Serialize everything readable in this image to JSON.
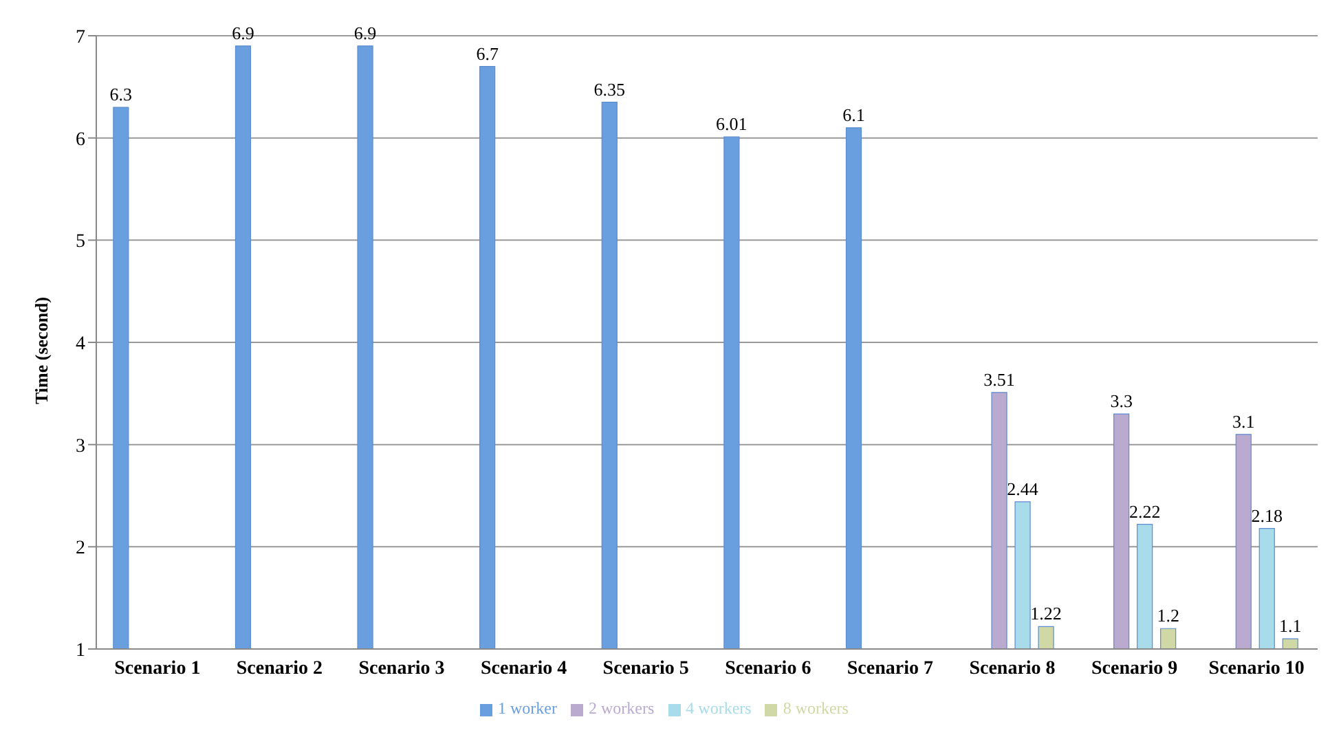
{
  "chart_data": {
    "type": "bar",
    "ylabel": "Time (second)",
    "categories": [
      "Scenario 1",
      "Scenario 2",
      "Scenario 3",
      "Scenario 4",
      "Scenario 5",
      "Scenario 6",
      "Scenario 7",
      "Scenario 8",
      "Scenario 9",
      "Scenario 10"
    ],
    "series": [
      {
        "name": "1 worker",
        "color": "#6a9fdf",
        "values": [
          6.3,
          6.9,
          6.9,
          6.7,
          6.35,
          6.01,
          6.1,
          null,
          null,
          null
        ]
      },
      {
        "name": "2 workers",
        "color": "#baaad0",
        "values": [
          null,
          null,
          null,
          null,
          null,
          null,
          null,
          3.51,
          3.3,
          3.1
        ]
      },
      {
        "name": "4 workers",
        "color": "#a8dcea",
        "values": [
          null,
          null,
          null,
          null,
          null,
          null,
          null,
          2.44,
          2.22,
          2.18
        ]
      },
      {
        "name": "8 workers",
        "color": "#d0d9a6",
        "values": [
          null,
          null,
          null,
          null,
          null,
          null,
          null,
          1.22,
          1.2,
          1.1
        ]
      }
    ],
    "ylim": [
      1,
      7
    ],
    "yticks": [
      1,
      2,
      3,
      4,
      5,
      6,
      7
    ],
    "grid": "y",
    "legend": "bottom",
    "data_labels": true
  }
}
